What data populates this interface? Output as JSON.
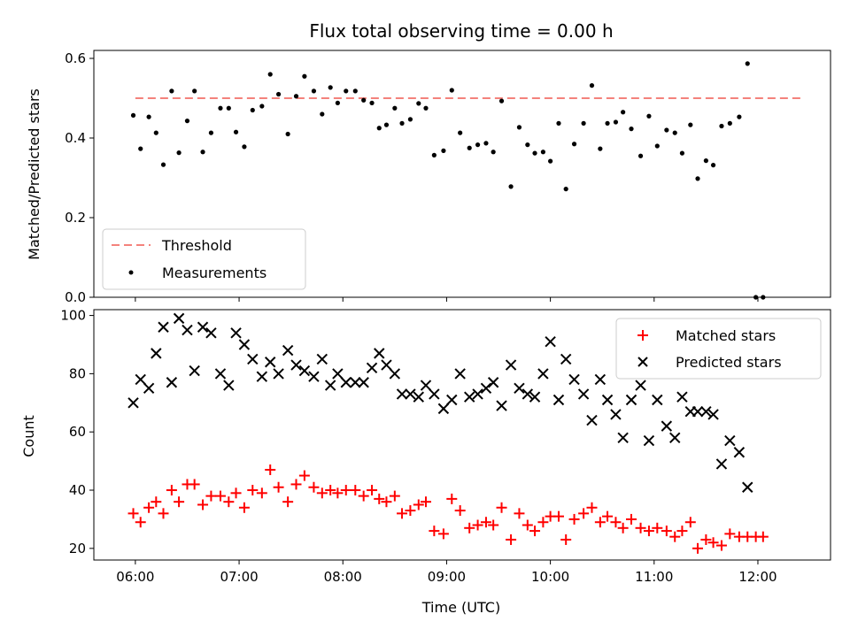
{
  "chart_data": [
    {
      "type": "scatter",
      "title": "Flux total observing time = 0.00 h",
      "xlabel": "",
      "ylabel": "Matched/Predicted stars",
      "ylim": [
        0,
        0.62
      ],
      "yticks": [
        "0.0",
        "0.2",
        "0.4",
        "0.6"
      ],
      "threshold": {
        "name": "Threshold",
        "value": 0.5,
        "x_start": "06:00",
        "x_end": "12:25",
        "color": "#f4827c"
      },
      "legend": {
        "location": "lower-left",
        "entries": [
          "Threshold",
          "Measurements"
        ]
      },
      "series": [
        {
          "name": "Measurements",
          "color": "#000000",
          "points": [
            [
              5.98,
              0.457
            ],
            [
              6.05,
              0.373
            ],
            [
              6.13,
              0.453
            ],
            [
              6.2,
              0.413
            ],
            [
              6.27,
              0.333
            ],
            [
              6.35,
              0.518
            ],
            [
              6.42,
              0.363
            ],
            [
              6.5,
              0.443
            ],
            [
              6.57,
              0.518
            ],
            [
              6.65,
              0.365
            ],
            [
              6.73,
              0.413
            ],
            [
              6.82,
              0.475
            ],
            [
              6.9,
              0.475
            ],
            [
              6.97,
              0.415
            ],
            [
              7.05,
              0.378
            ],
            [
              7.13,
              0.47
            ],
            [
              7.22,
              0.48
            ],
            [
              7.3,
              0.56
            ],
            [
              7.38,
              0.51
            ],
            [
              7.47,
              0.41
            ],
            [
              7.55,
              0.505
            ],
            [
              7.63,
              0.555
            ],
            [
              7.72,
              0.518
            ],
            [
              7.8,
              0.46
            ],
            [
              7.88,
              0.527
            ],
            [
              7.95,
              0.488
            ],
            [
              8.03,
              0.518
            ],
            [
              8.12,
              0.518
            ],
            [
              8.2,
              0.495
            ],
            [
              8.28,
              0.488
            ],
            [
              8.35,
              0.425
            ],
            [
              8.42,
              0.433
            ],
            [
              8.5,
              0.475
            ],
            [
              8.57,
              0.437
            ],
            [
              8.65,
              0.447
            ],
            [
              8.73,
              0.487
            ],
            [
              8.8,
              0.475
            ],
            [
              8.88,
              0.357
            ],
            [
              8.97,
              0.368
            ],
            [
              9.05,
              0.52
            ],
            [
              9.13,
              0.413
            ],
            [
              9.22,
              0.375
            ],
            [
              9.3,
              0.383
            ],
            [
              9.38,
              0.387
            ],
            [
              9.45,
              0.365
            ],
            [
              9.53,
              0.493
            ],
            [
              9.62,
              0.278
            ],
            [
              9.7,
              0.427
            ],
            [
              9.78,
              0.383
            ],
            [
              9.85,
              0.362
            ],
            [
              9.93,
              0.365
            ],
            [
              10.0,
              0.342
            ],
            [
              10.08,
              0.437
            ],
            [
              10.15,
              0.272
            ],
            [
              10.23,
              0.385
            ],
            [
              10.32,
              0.437
            ],
            [
              10.4,
              0.532
            ],
            [
              10.48,
              0.373
            ],
            [
              10.55,
              0.437
            ],
            [
              10.63,
              0.44
            ],
            [
              10.7,
              0.465
            ],
            [
              10.78,
              0.423
            ],
            [
              10.87,
              0.355
            ],
            [
              10.95,
              0.455
            ],
            [
              11.03,
              0.38
            ],
            [
              11.12,
              0.42
            ],
            [
              11.2,
              0.413
            ],
            [
              11.27,
              0.362
            ],
            [
              11.35,
              0.433
            ],
            [
              11.42,
              0.298
            ],
            [
              11.5,
              0.343
            ],
            [
              11.57,
              0.332
            ],
            [
              11.65,
              0.43
            ],
            [
              11.73,
              0.437
            ],
            [
              11.82,
              0.453
            ],
            [
              11.9,
              0.587
            ],
            [
              11.98,
              0.0
            ],
            [
              12.05,
              0.0
            ]
          ]
        }
      ]
    },
    {
      "type": "scatter",
      "title": "",
      "xlabel": "Time (UTC)",
      "ylabel": "Count",
      "ylim": [
        16,
        102
      ],
      "yticks": [
        "20",
        "40",
        "60",
        "80",
        "100"
      ],
      "xlim": [
        5.6,
        12.7
      ],
      "xticks": [
        "06:00",
        "07:00",
        "08:00",
        "09:00",
        "10:00",
        "11:00",
        "12:00"
      ],
      "legend": {
        "location": "top-right",
        "entries": [
          "Matched stars",
          "Predicted stars"
        ]
      },
      "series": [
        {
          "name": "Matched stars",
          "marker": "plus",
          "color": "#ff0000",
          "points": [
            [
              5.98,
              32
            ],
            [
              6.05,
              29
            ],
            [
              6.13,
              34
            ],
            [
              6.2,
              36
            ],
            [
              6.27,
              32
            ],
            [
              6.35,
              40
            ],
            [
              6.42,
              36
            ],
            [
              6.5,
              42
            ],
            [
              6.57,
              42
            ],
            [
              6.65,
              35
            ],
            [
              6.73,
              38
            ],
            [
              6.82,
              38
            ],
            [
              6.9,
              36
            ],
            [
              6.97,
              39
            ],
            [
              7.05,
              34
            ],
            [
              7.13,
              40
            ],
            [
              7.22,
              39
            ],
            [
              7.3,
              47
            ],
            [
              7.38,
              41
            ],
            [
              7.47,
              36
            ],
            [
              7.55,
              42
            ],
            [
              7.63,
              45
            ],
            [
              7.72,
              41
            ],
            [
              7.8,
              39
            ],
            [
              7.88,
              40
            ],
            [
              7.95,
              39
            ],
            [
              8.03,
              40
            ],
            [
              8.12,
              40
            ],
            [
              8.2,
              38
            ],
            [
              8.28,
              40
            ],
            [
              8.35,
              37
            ],
            [
              8.42,
              36
            ],
            [
              8.5,
              38
            ],
            [
              8.57,
              32
            ],
            [
              8.65,
              33
            ],
            [
              8.73,
              35
            ],
            [
              8.8,
              36
            ],
            [
              8.88,
              26
            ],
            [
              8.97,
              25
            ],
            [
              9.05,
              37
            ],
            [
              9.13,
              33
            ],
            [
              9.22,
              27
            ],
            [
              9.3,
              28
            ],
            [
              9.38,
              29
            ],
            [
              9.45,
              28
            ],
            [
              9.53,
              34
            ],
            [
              9.62,
              23
            ],
            [
              9.7,
              32
            ],
            [
              9.78,
              28
            ],
            [
              9.85,
              26
            ],
            [
              9.93,
              29
            ],
            [
              10.0,
              31
            ],
            [
              10.08,
              31
            ],
            [
              10.15,
              23
            ],
            [
              10.23,
              30
            ],
            [
              10.32,
              32
            ],
            [
              10.4,
              34
            ],
            [
              10.48,
              29
            ],
            [
              10.55,
              31
            ],
            [
              10.63,
              29
            ],
            [
              10.7,
              27
            ],
            [
              10.78,
              30
            ],
            [
              10.87,
              27
            ],
            [
              10.95,
              26
            ],
            [
              11.03,
              27
            ],
            [
              11.12,
              26
            ],
            [
              11.2,
              24
            ],
            [
              11.27,
              26
            ],
            [
              11.35,
              29
            ],
            [
              11.42,
              20
            ],
            [
              11.5,
              23
            ],
            [
              11.57,
              22
            ],
            [
              11.65,
              21
            ],
            [
              11.73,
              25
            ],
            [
              11.82,
              24
            ],
            [
              11.9,
              24
            ],
            [
              11.98,
              24
            ],
            [
              12.05,
              24
            ]
          ]
        },
        {
          "name": "Predicted stars",
          "marker": "x",
          "color": "#000000",
          "points": [
            [
              5.98,
              70
            ],
            [
              6.05,
              78
            ],
            [
              6.13,
              75
            ],
            [
              6.2,
              87
            ],
            [
              6.27,
              96
            ],
            [
              6.35,
              77
            ],
            [
              6.42,
              99
            ],
            [
              6.5,
              95
            ],
            [
              6.57,
              81
            ],
            [
              6.65,
              96
            ],
            [
              6.73,
              94
            ],
            [
              6.82,
              80
            ],
            [
              6.9,
              76
            ],
            [
              6.97,
              94
            ],
            [
              7.05,
              90
            ],
            [
              7.13,
              85
            ],
            [
              7.22,
              79
            ],
            [
              7.3,
              84
            ],
            [
              7.38,
              80
            ],
            [
              7.47,
              88
            ],
            [
              7.55,
              83
            ],
            [
              7.63,
              81
            ],
            [
              7.72,
              79
            ],
            [
              7.8,
              85
            ],
            [
              7.88,
              76
            ],
            [
              7.95,
              80
            ],
            [
              8.03,
              77
            ],
            [
              8.12,
              77
            ],
            [
              8.2,
              77
            ],
            [
              8.28,
              82
            ],
            [
              8.35,
              87
            ],
            [
              8.42,
              83
            ],
            [
              8.5,
              80
            ],
            [
              8.57,
              73
            ],
            [
              8.65,
              73
            ],
            [
              8.73,
              72
            ],
            [
              8.8,
              76
            ],
            [
              8.88,
              73
            ],
            [
              8.97,
              68
            ],
            [
              9.05,
              71
            ],
            [
              9.13,
              80
            ],
            [
              9.22,
              72
            ],
            [
              9.3,
              73
            ],
            [
              9.38,
              75
            ],
            [
              9.45,
              77
            ],
            [
              9.53,
              69
            ],
            [
              9.62,
              83
            ],
            [
              9.7,
              75
            ],
            [
              9.78,
              73
            ],
            [
              9.85,
              72
            ],
            [
              9.93,
              80
            ],
            [
              10.0,
              91
            ],
            [
              10.08,
              71
            ],
            [
              10.15,
              85
            ],
            [
              10.23,
              78
            ],
            [
              10.32,
              73
            ],
            [
              10.4,
              64
            ],
            [
              10.48,
              78
            ],
            [
              10.55,
              71
            ],
            [
              10.63,
              66
            ],
            [
              10.7,
              58
            ],
            [
              10.78,
              71
            ],
            [
              10.87,
              76
            ],
            [
              10.95,
              57
            ],
            [
              11.03,
              71
            ],
            [
              11.12,
              62
            ],
            [
              11.2,
              58
            ],
            [
              11.27,
              72
            ],
            [
              11.35,
              67
            ],
            [
              11.42,
              67
            ],
            [
              11.5,
              67
            ],
            [
              11.57,
              66
            ],
            [
              11.65,
              49
            ],
            [
              11.73,
              57
            ],
            [
              11.82,
              53
            ],
            [
              11.9,
              41
            ]
          ]
        }
      ]
    }
  ]
}
